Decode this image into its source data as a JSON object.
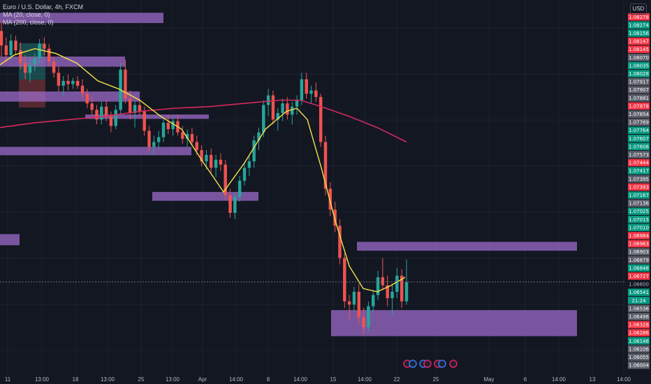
{
  "legend": {
    "title": "Euro / U.S. Dollar, 4h, FXCM",
    "ma20": "MA (20, close, 0)",
    "ma200": "MA (200, close, 0)"
  },
  "currency_button": "USD",
  "colors": {
    "background": "#131722",
    "up": "#26a69a",
    "down": "#ef5350",
    "ma20": "#f5e34a",
    "ma200": "#d42a5f",
    "zone": "#9c6bc9",
    "label_gray": "#787b86"
  },
  "chart_data": {
    "type": "candlestick",
    "ylim": [
      1.05959,
      1.08275
    ],
    "price_labels": [
      {
        "text": "1.08278",
        "tone": "red"
      },
      {
        "text": "1.08274",
        "tone": "green"
      },
      {
        "text": "1.08156",
        "tone": "green"
      },
      {
        "text": "1.08147",
        "tone": "red"
      },
      {
        "text": "1.08145",
        "tone": "red"
      },
      {
        "text": "1.08070",
        "tone": "gray"
      },
      {
        "text": "1.08035",
        "tone": "green"
      },
      {
        "text": "1.08028",
        "tone": "green"
      },
      {
        "text": "1.07917",
        "tone": "gray"
      },
      {
        "text": "1.07907",
        "tone": "gray"
      },
      {
        "text": "1.07881",
        "tone": "gray"
      },
      {
        "text": "1.07878",
        "tone": "red"
      },
      {
        "text": "1.07854",
        "tone": "gray"
      },
      {
        "text": "1.07769",
        "tone": "gray"
      },
      {
        "text": "1.07764",
        "tone": "green"
      },
      {
        "text": "1.07607",
        "tone": "green"
      },
      {
        "text": "1.07606",
        "tone": "green"
      },
      {
        "text": "1.07573",
        "tone": "gray"
      },
      {
        "text": "1.07444",
        "tone": "red"
      },
      {
        "text": "1.07417",
        "tone": "green"
      },
      {
        "text": "1.07395",
        "tone": "gray"
      },
      {
        "text": "1.07393",
        "tone": "red"
      },
      {
        "text": "1.07167",
        "tone": "green"
      },
      {
        "text": "1.07136",
        "tone": "gray"
      },
      {
        "text": "1.07025",
        "tone": "green"
      },
      {
        "text": "1.07015",
        "tone": "green"
      },
      {
        "text": "1.07010",
        "tone": "green"
      },
      {
        "text": "1.06984",
        "tone": "red"
      },
      {
        "text": "1.06963",
        "tone": "red"
      },
      {
        "text": "1.06903",
        "tone": "gray"
      },
      {
        "text": "1.06879",
        "tone": "gray"
      },
      {
        "text": "1.06848",
        "tone": "green"
      },
      {
        "text": "1.06727",
        "tone": "red"
      },
      {
        "text": "1.06600",
        "tone": "plain"
      },
      {
        "text": "1.06541",
        "tone": "green"
      },
      {
        "text": "21:24",
        "tone": "green"
      },
      {
        "text": "1.06536",
        "tone": "gray"
      },
      {
        "text": "1.06496",
        "tone": "gray"
      },
      {
        "text": "1.06328",
        "tone": "red"
      },
      {
        "text": "1.06286",
        "tone": "red"
      },
      {
        "text": "1.06148",
        "tone": "green"
      },
      {
        "text": "1.06106",
        "tone": "gray"
      },
      {
        "text": "1.06055",
        "tone": "gray"
      },
      {
        "text": "1.06004",
        "tone": "gray"
      }
    ],
    "x_ticks": [
      "11",
      "13:00",
      "18",
      "13:00",
      "25",
      "13:00",
      "Apr",
      "14:00",
      "8",
      "14:00",
      "15",
      "14:00",
      "22",
      "25",
      "May",
      "6",
      "14:00",
      "13",
      "14:00"
    ],
    "candles": [
      [
        1.081,
        1.0816,
        1.0794,
        1.0801
      ],
      [
        1.0801,
        1.0806,
        1.079,
        1.0795
      ],
      [
        1.0795,
        1.0808,
        1.0792,
        1.0804
      ],
      [
        1.0804,
        1.0807,
        1.0795,
        1.0798
      ],
      [
        1.0798,
        1.0803,
        1.0786,
        1.079
      ],
      [
        1.079,
        1.0795,
        1.078,
        1.0784
      ],
      [
        1.0784,
        1.0792,
        1.0778,
        1.0789
      ],
      [
        1.0789,
        1.0796,
        1.0785,
        1.0793
      ],
      [
        1.0793,
        1.0805,
        1.079,
        1.0802
      ],
      [
        1.0802,
        1.0806,
        1.0795,
        1.0799
      ],
      [
        1.0799,
        1.0802,
        1.0788,
        1.0791
      ],
      [
        1.0791,
        1.0794,
        1.0781,
        1.0784
      ],
      [
        1.0784,
        1.0788,
        1.0772,
        1.0776
      ],
      [
        1.0776,
        1.0782,
        1.077,
        1.0779
      ],
      [
        1.0779,
        1.0783,
        1.0773,
        1.0777
      ],
      [
        1.0777,
        1.0781,
        1.0774,
        1.0779
      ],
      [
        1.0779,
        1.0782,
        1.0774,
        1.0776
      ],
      [
        1.0776,
        1.078,
        1.0768,
        1.0771
      ],
      [
        1.0771,
        1.0774,
        1.0762,
        1.0765
      ],
      [
        1.0765,
        1.0769,
        1.0758,
        1.0761
      ],
      [
        1.0761,
        1.0764,
        1.0752,
        1.0755
      ],
      [
        1.0755,
        1.0766,
        1.0752,
        1.0763
      ],
      [
        1.0763,
        1.0767,
        1.0754,
        1.0757
      ],
      [
        1.0757,
        1.076,
        1.0747,
        1.0751
      ],
      [
        1.0751,
        1.0764,
        1.0749,
        1.0761
      ],
      [
        1.0761,
        1.079,
        1.0758,
        1.0786
      ],
      [
        1.0786,
        1.0792,
        1.0765,
        1.0768
      ],
      [
        1.0768,
        1.0773,
        1.0755,
        1.0759
      ],
      [
        1.0759,
        1.0767,
        1.075,
        1.0764
      ],
      [
        1.0764,
        1.0768,
        1.0757,
        1.076
      ],
      [
        1.076,
        1.0763,
        1.0745,
        1.0748
      ],
      [
        1.0748,
        1.0751,
        1.0735,
        1.0738
      ],
      [
        1.0738,
        1.0745,
        1.0733,
        1.0741
      ],
      [
        1.0741,
        1.0748,
        1.0737,
        1.0744
      ],
      [
        1.0744,
        1.0756,
        1.0741,
        1.0753
      ],
      [
        1.0753,
        1.0758,
        1.0746,
        1.0749
      ],
      [
        1.0749,
        1.0757,
        1.0745,
        1.0754
      ],
      [
        1.0754,
        1.0758,
        1.0745,
        1.0747
      ],
      [
        1.0747,
        1.0751,
        1.074,
        1.0743
      ],
      [
        1.0743,
        1.0749,
        1.0738,
        1.0746
      ],
      [
        1.0746,
        1.075,
        1.0739,
        1.0741
      ],
      [
        1.0741,
        1.0745,
        1.0733,
        1.0736
      ],
      [
        1.0736,
        1.0739,
        1.0726,
        1.0729
      ],
      [
        1.0729,
        1.0736,
        1.0724,
        1.0733
      ],
      [
        1.0733,
        1.0737,
        1.0722,
        1.0725
      ],
      [
        1.0725,
        1.0733,
        1.0719,
        1.073
      ],
      [
        1.073,
        1.0734,
        1.0723,
        1.0727
      ],
      [
        1.0727,
        1.073,
        1.0705,
        1.0708
      ],
      [
        1.0708,
        1.0712,
        1.0694,
        1.0697
      ],
      [
        1.0697,
        1.071,
        1.0693,
        1.0707
      ],
      [
        1.0707,
        1.072,
        1.0704,
        1.0717
      ],
      [
        1.0717,
        1.0728,
        1.0714,
        1.0725
      ],
      [
        1.0725,
        1.0732,
        1.072,
        1.0729
      ],
      [
        1.0729,
        1.0745,
        1.0725,
        1.0742
      ],
      [
        1.0742,
        1.075,
        1.0736,
        1.0747
      ],
      [
        1.0747,
        1.0767,
        1.0744,
        1.0764
      ],
      [
        1.0764,
        1.0774,
        1.0757,
        1.077
      ],
      [
        1.077,
        1.0773,
        1.0752,
        1.0755
      ],
      [
        1.0755,
        1.0762,
        1.0748,
        1.0759
      ],
      [
        1.0759,
        1.0768,
        1.0754,
        1.0765
      ],
      [
        1.0765,
        1.0769,
        1.0755,
        1.0758
      ],
      [
        1.0758,
        1.0766,
        1.0752,
        1.0763
      ],
      [
        1.0763,
        1.077,
        1.0758,
        1.0767
      ],
      [
        1.0767,
        1.0784,
        1.0764,
        1.078
      ],
      [
        1.078,
        1.0784,
        1.0768,
        1.0771
      ],
      [
        1.0771,
        1.0776,
        1.0765,
        1.0773
      ],
      [
        1.0773,
        1.0778,
        1.0766,
        1.0769
      ],
      [
        1.0769,
        1.0771,
        1.0738,
        1.0741
      ],
      [
        1.0741,
        1.0745,
        1.0708,
        1.0712
      ],
      [
        1.0712,
        1.0716,
        1.0695,
        1.0699
      ],
      [
        1.0699,
        1.0704,
        1.0685,
        1.0689
      ],
      [
        1.0689,
        1.0693,
        1.0665,
        1.0669
      ],
      [
        1.0669,
        1.0672,
        1.0638,
        1.0642
      ],
      [
        1.0642,
        1.0646,
        1.0631,
        1.064
      ],
      [
        1.064,
        1.0651,
        1.0636,
        1.0648
      ],
      [
        1.0648,
        1.0653,
        1.0628,
        1.0632
      ],
      [
        1.0632,
        1.0638,
        1.0622,
        1.0626
      ],
      [
        1.0626,
        1.0642,
        1.0623,
        1.0639
      ],
      [
        1.0639,
        1.0649,
        1.0635,
        1.0646
      ],
      [
        1.0646,
        1.0661,
        1.0643,
        1.0657
      ],
      [
        1.0657,
        1.0669,
        1.0649,
        1.0652
      ],
      [
        1.0652,
        1.0658,
        1.0639,
        1.0644
      ],
      [
        1.0644,
        1.0653,
        1.0634,
        1.0648
      ],
      [
        1.0648,
        1.0663,
        1.0644,
        1.0658
      ],
      [
        1.0658,
        1.0662,
        1.0638,
        1.0642
      ],
      [
        1.0642,
        1.0668,
        1.064,
        1.0654
      ]
    ],
    "zones": [
      {
        "x0": 0,
        "x1": 234,
        "top": 1.08213,
        "bottom": 1.08149
      },
      {
        "x0": 0,
        "x1": 179,
        "top": 1.07941,
        "bottom": 1.07878
      },
      {
        "x0": 0,
        "x1": 200,
        "top": 1.07724,
        "bottom": 1.07661
      },
      {
        "x0": 122,
        "x1": 299,
        "top": 1.07581,
        "bottom": 1.07554
      },
      {
        "x0": 0,
        "x1": 274,
        "top": 1.0738,
        "bottom": 1.07328
      },
      {
        "x0": 218,
        "x1": 370,
        "top": 1.071,
        "bottom": 1.07045
      },
      {
        "x0": 0,
        "x1": 28,
        "top": 1.06838,
        "bottom": 1.06769
      },
      {
        "x0": 511,
        "x1": 826,
        "top": 1.0679,
        "bottom": 1.06735
      },
      {
        "x0": 474,
        "x1": 826,
        "top": 1.06366,
        "bottom": 1.06204
      }
    ],
    "ma20": [
      [
        0,
        1.0789
      ],
      [
        20,
        1.0795
      ],
      [
        50,
        1.0799
      ],
      [
        80,
        1.0796
      ],
      [
        110,
        1.079
      ],
      [
        140,
        1.0779
      ],
      [
        170,
        1.0774
      ],
      [
        200,
        1.0767
      ],
      [
        230,
        1.0757
      ],
      [
        260,
        1.0749
      ],
      [
        290,
        1.0729
      ],
      [
        320,
        1.071
      ],
      [
        350,
        1.0728
      ],
      [
        380,
        1.0749
      ],
      [
        410,
        1.076
      ],
      [
        425,
        1.0762
      ],
      [
        440,
        1.0755
      ],
      [
        460,
        1.0725
      ],
      [
        480,
        1.0692
      ],
      [
        500,
        1.0664
      ],
      [
        520,
        1.065
      ],
      [
        540,
        1.0648
      ],
      [
        560,
        1.0652
      ],
      [
        580,
        1.0657
      ]
    ],
    "ma200": [
      [
        0,
        1.075
      ],
      [
        50,
        1.0753
      ],
      [
        100,
        1.0755
      ],
      [
        150,
        1.0757
      ],
      [
        200,
        1.076
      ],
      [
        250,
        1.0762
      ],
      [
        300,
        1.0763
      ],
      [
        350,
        1.0765
      ],
      [
        400,
        1.0767
      ],
      [
        430,
        1.0767
      ],
      [
        460,
        1.0763
      ],
      [
        500,
        1.0757
      ],
      [
        540,
        1.075
      ],
      [
        582,
        1.0741
      ]
    ],
    "last_price": 1.06541
  }
}
